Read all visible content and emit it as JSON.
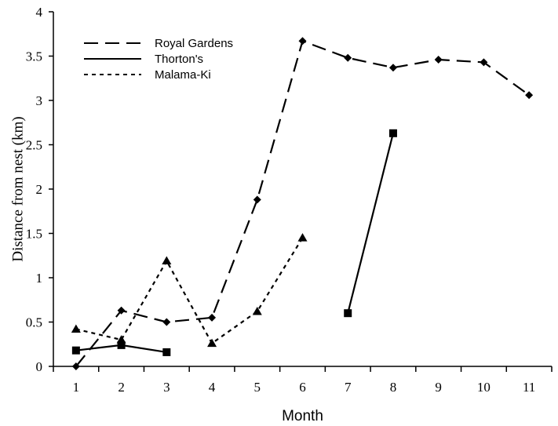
{
  "chart_data": {
    "type": "line",
    "xlabel": "Month",
    "ylabel": "Distance from nest (km)",
    "x_ticks": [
      1,
      2,
      3,
      4,
      5,
      6,
      7,
      8,
      9,
      10,
      11
    ],
    "y_ticks": [
      "0",
      "0.5",
      "1",
      "1.5",
      "2",
      "2.5",
      "3",
      "3.5",
      "4"
    ],
    "xlim": [
      0.5,
      11.5
    ],
    "ylim": [
      0,
      4
    ],
    "grid": false,
    "legend_position": "top-left",
    "series": [
      {
        "name": "Royal Gardens",
        "line_style": "dashed",
        "marker": "diamond",
        "color": "#000000",
        "segments": [
          [
            [
              1,
              0.0
            ],
            [
              2,
              0.63
            ],
            [
              3,
              0.5
            ],
            [
              4,
              0.55
            ],
            [
              5,
              1.88
            ],
            [
              6,
              3.67
            ],
            [
              7,
              3.48
            ],
            [
              8,
              3.37
            ],
            [
              9,
              3.46
            ],
            [
              10,
              3.43
            ],
            [
              11,
              3.06
            ]
          ]
        ]
      },
      {
        "name": "Thorton's",
        "line_style": "solid",
        "marker": "square",
        "color": "#000000",
        "segments": [
          [
            [
              1,
              0.18
            ],
            [
              2,
              0.24
            ],
            [
              3,
              0.16
            ]
          ],
          [
            [
              7,
              0.6
            ],
            [
              8,
              2.63
            ]
          ]
        ]
      },
      {
        "name": "Malama-Ki",
        "line_style": "dotted",
        "marker": "triangle",
        "color": "#000000",
        "segments": [
          [
            [
              1,
              0.42
            ],
            [
              2,
              0.3
            ],
            [
              3,
              1.19
            ],
            [
              4,
              0.26
            ],
            [
              5,
              0.62
            ],
            [
              6,
              1.45
            ]
          ]
        ]
      }
    ]
  }
}
